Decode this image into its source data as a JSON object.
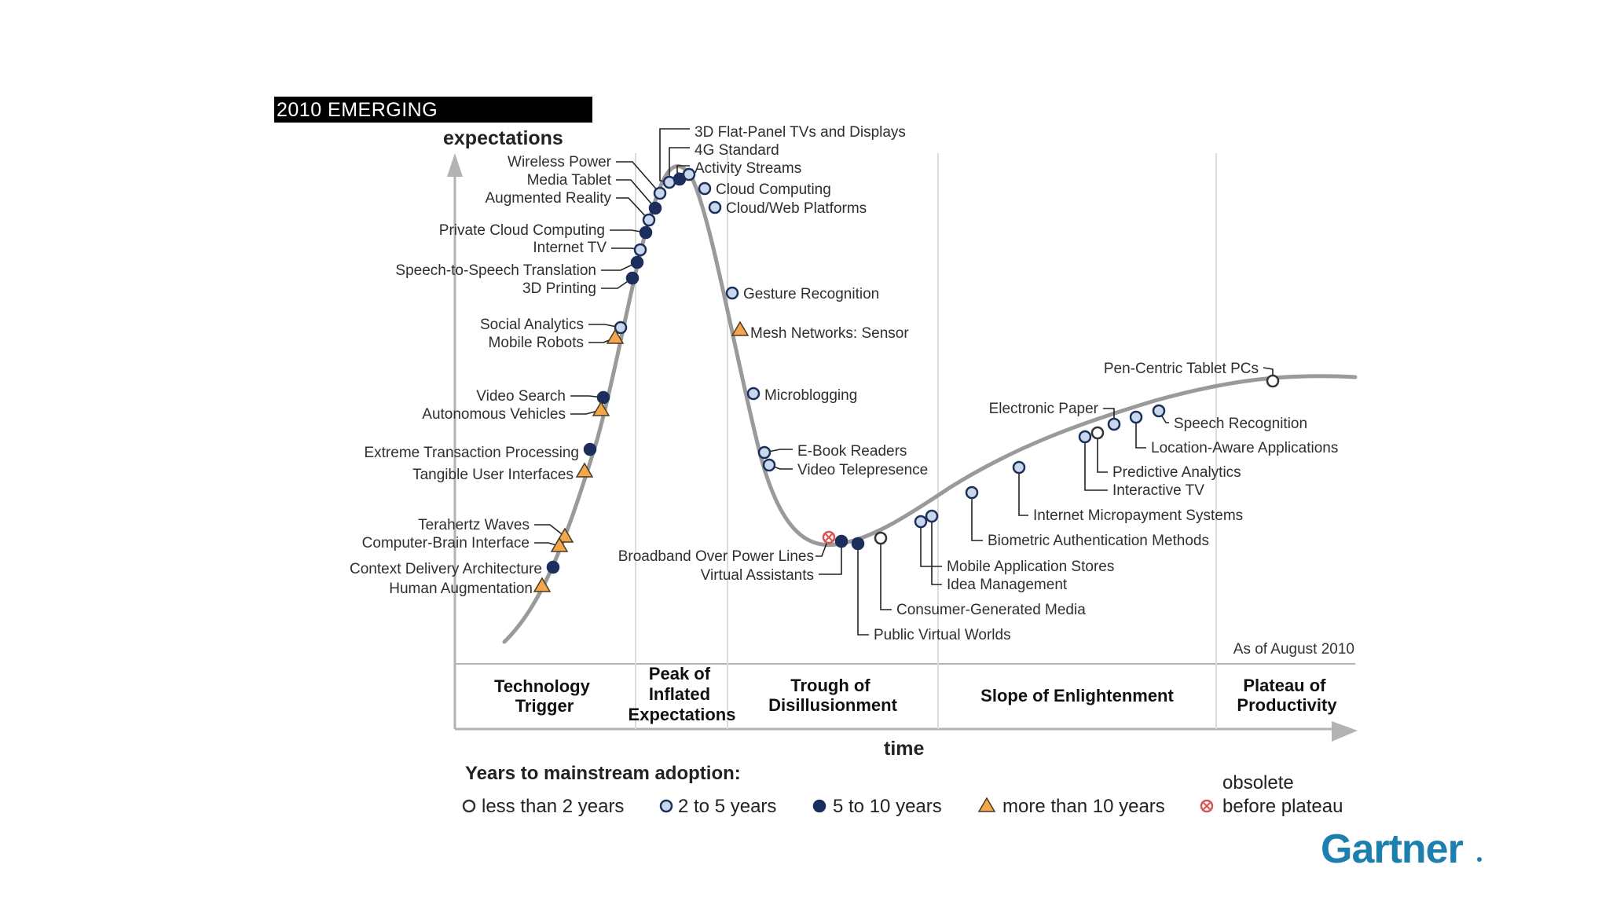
{
  "title": "2010 EMERGING",
  "axis": {
    "y": "expectations",
    "x": "time"
  },
  "as_of": "As of August 2010",
  "phases": [
    {
      "lines": [
        "Technology",
        "Trigger"
      ]
    },
    {
      "lines": [
        "Peak of",
        "Inflated",
        "Expectations"
      ]
    },
    {
      "lines": [
        "Trough of",
        "Disillusionment"
      ]
    },
    {
      "lines": [
        "Slope of Enlightenment"
      ]
    },
    {
      "lines": [
        "Plateau of",
        "Productivity"
      ]
    }
  ],
  "legend": {
    "heading": "Years to mainstream adoption:",
    "items": [
      {
        "key": "lt2",
        "label": "less than 2 years"
      },
      {
        "key": "2to5",
        "label": "2 to 5 years"
      },
      {
        "key": "5to10",
        "label": "5 to 10 years"
      },
      {
        "key": "gt10",
        "label": "more than 10 years"
      },
      {
        "key": "obsolete",
        "label": "before plateau",
        "label_top": "obsolete"
      }
    ]
  },
  "technologies": [
    {
      "name": "3D Flat-Panel TVs and Displays",
      "adoption": "2to5"
    },
    {
      "name": "4G Standard",
      "adoption": "5to10"
    },
    {
      "name": "Activity Streams",
      "adoption": "2to5"
    },
    {
      "name": "Wireless Power",
      "adoption": "2to5"
    },
    {
      "name": "Media Tablet",
      "adoption": "5to10"
    },
    {
      "name": "Augmented Reality",
      "adoption": "2to5"
    },
    {
      "name": "Private Cloud Computing",
      "adoption": "5to10"
    },
    {
      "name": "Internet TV",
      "adoption": "2to5"
    },
    {
      "name": "Speech-to-Speech Translation",
      "adoption": "5to10"
    },
    {
      "name": "3D Printing",
      "adoption": "5to10"
    },
    {
      "name": "Social Analytics",
      "adoption": "2to5"
    },
    {
      "name": "Mobile Robots",
      "adoption": "gt10"
    },
    {
      "name": "Video Search",
      "adoption": "5to10"
    },
    {
      "name": "Autonomous Vehicles",
      "adoption": "gt10"
    },
    {
      "name": "Extreme Transaction Processing",
      "adoption": "5to10"
    },
    {
      "name": "Tangible User Interfaces",
      "adoption": "gt10"
    },
    {
      "name": "Terahertz Waves",
      "adoption": "gt10"
    },
    {
      "name": "Computer-Brain Interface",
      "adoption": "gt10"
    },
    {
      "name": "Context Delivery Architecture",
      "adoption": "5to10"
    },
    {
      "name": "Human Augmentation",
      "adoption": "gt10"
    },
    {
      "name": "Cloud Computing",
      "adoption": "2to5"
    },
    {
      "name": "Cloud/Web Platforms",
      "adoption": "2to5"
    },
    {
      "name": "Gesture Recognition",
      "adoption": "2to5"
    },
    {
      "name": "Mesh Networks: Sensor",
      "adoption": "gt10"
    },
    {
      "name": "Microblogging",
      "adoption": "2to5"
    },
    {
      "name": "E-Book Readers",
      "adoption": "2to5"
    },
    {
      "name": "Video Telepresence",
      "adoption": "2to5"
    },
    {
      "name": "Broadband Over Power Lines",
      "adoption": "obsolete"
    },
    {
      "name": "Virtual Assistants",
      "adoption": "5to10"
    },
    {
      "name": "Public Virtual Worlds",
      "adoption": "5to10"
    },
    {
      "name": "Consumer-Generated Media",
      "adoption": "lt2"
    },
    {
      "name": "Mobile Application Stores",
      "adoption": "2to5"
    },
    {
      "name": "Idea Management",
      "adoption": "2to5"
    },
    {
      "name": "Biometric Authentication Methods",
      "adoption": "2to5"
    },
    {
      "name": "Internet Micropayment Systems",
      "adoption": "2to5"
    },
    {
      "name": "Interactive TV",
      "adoption": "2to5"
    },
    {
      "name": "Predictive Analytics",
      "adoption": "lt2"
    },
    {
      "name": "Electronic Paper",
      "adoption": "2to5"
    },
    {
      "name": "Location-Aware Applications",
      "adoption": "2to5"
    },
    {
      "name": "Speech Recognition",
      "adoption": "2to5"
    },
    {
      "name": "Pen-Centric Tablet PCs",
      "adoption": "lt2"
    }
  ],
  "brand": "Gartner",
  "colors": {
    "curve": "#9a9a9a",
    "navy": "#1c2f5c",
    "light_blue_fill": "#c8d8ea",
    "triangle_fill": "#f2a64e",
    "obsolete_red": "#d9534f",
    "brand_blue": "#1d7fae"
  }
}
